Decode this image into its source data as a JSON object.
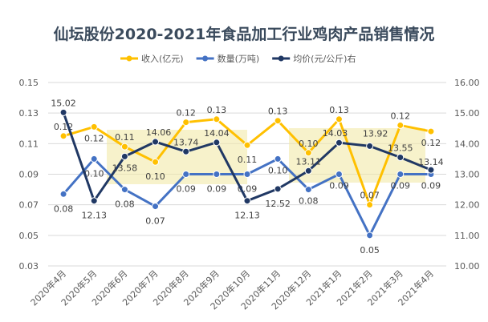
{
  "chart_data": {
    "type": "line",
    "title": "仙坛股份2020-2021年食品加工行业鸡肉产品销售情况",
    "categories": [
      "2020年4月",
      "2020年5月",
      "2020年6月",
      "2020年7月",
      "2020年8月",
      "2020年9月",
      "2020年10月",
      "2020年11月",
      "2020年12月",
      "2021年1月",
      "2021年2月",
      "2021年3月",
      "2021年4月"
    ],
    "series": [
      {
        "name": "收入(亿元)",
        "axis": "left",
        "color": "#FFC000",
        "values": [
          0.115,
          0.121,
          0.108,
          0.098,
          0.124,
          0.126,
          0.109,
          0.125,
          0.104,
          0.126,
          0.07,
          0.122,
          0.118
        ],
        "labels": [
          "0.12",
          "0.12",
          "0.11",
          "0.10",
          "0.12",
          "0.13",
          "0.11",
          "0.13",
          "0.10",
          "0.13",
          "0.07",
          "0.12",
          "0.12"
        ]
      },
      {
        "name": "数量(万吨)",
        "axis": "left",
        "color": "#4472C4",
        "values": [
          0.077,
          0.1,
          0.08,
          0.069,
          0.09,
          0.09,
          0.09,
          0.1,
          0.08,
          0.09,
          0.05,
          0.09,
          0.09
        ],
        "labels": [
          "0.08",
          "0.10",
          "0.08",
          "0.07",
          "0.09",
          "0.09",
          "0.09",
          "0.10",
          "0.08",
          "0.09",
          "0.05",
          "0.09",
          "0.09"
        ]
      },
      {
        "name": "均价(元/公斤)右",
        "axis": "right",
        "color": "#203864",
        "values": [
          15.02,
          12.13,
          13.58,
          14.06,
          13.74,
          14.04,
          12.13,
          12.52,
          13.11,
          14.03,
          13.92,
          13.55,
          13.14
        ],
        "labels": [
          "15.02",
          "12.13",
          "13.58",
          "14.06",
          "13.74",
          "14.04",
          "12.13",
          "12.52",
          "13.11",
          "14.03",
          "13.92",
          "13.55",
          "13.14"
        ]
      }
    ],
    "left_axis": {
      "ylim": [
        0.03,
        0.15
      ],
      "ticks": [
        "0.03",
        "0.05",
        "0.07",
        "0.09",
        "0.11",
        "0.13",
        "0.15"
      ]
    },
    "right_axis": {
      "ylim": [
        10,
        16
      ],
      "ticks": [
        "10.00",
        "11.00",
        "12.00",
        "13.00",
        "14.00",
        "15.00",
        "16.00"
      ]
    },
    "grid": true,
    "legend": "top"
  }
}
